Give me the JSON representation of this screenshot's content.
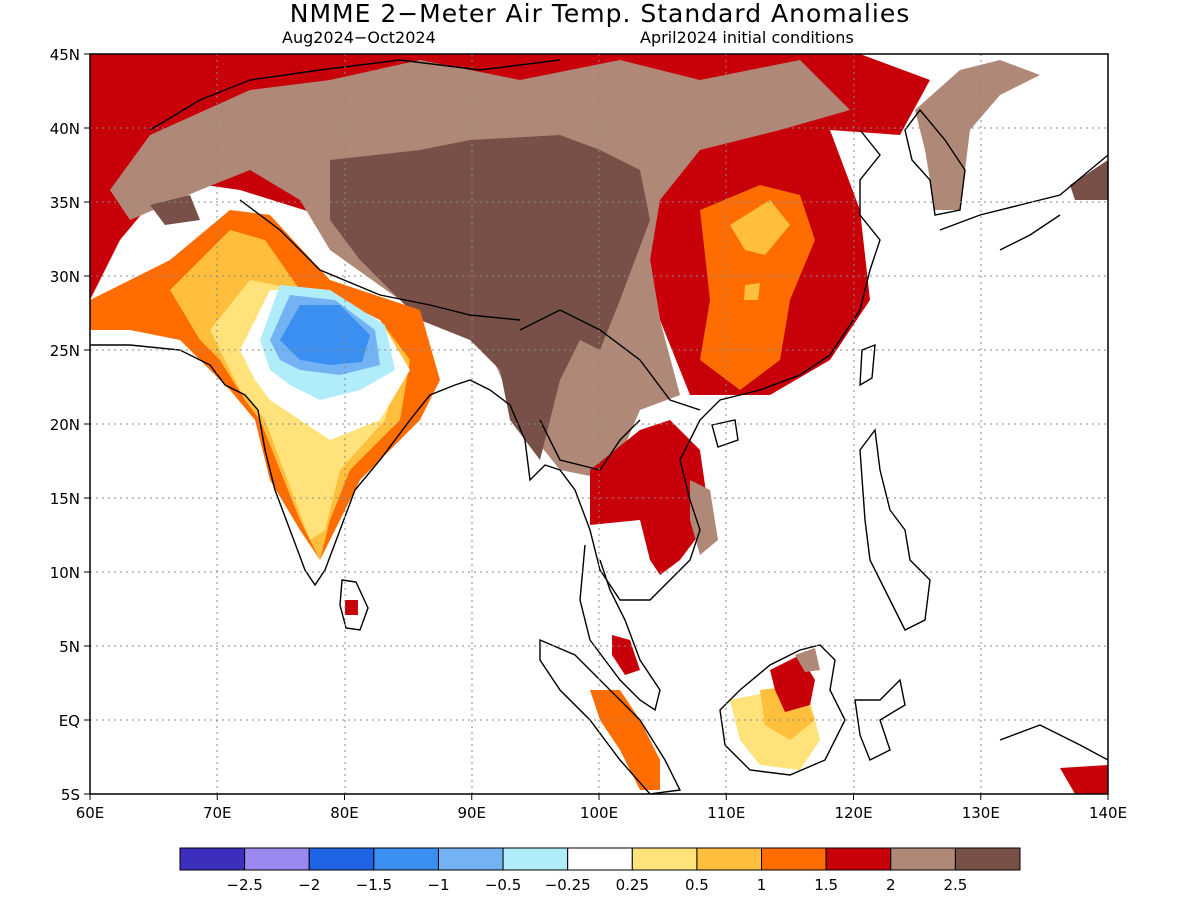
{
  "title": "NMME 2−Meter Air Temp. Standard Anomalies",
  "subtitle_left": "Aug2024−Oct2024",
  "subtitle_right": "April2024 initial conditions",
  "map": {
    "lon_range": [
      60,
      140
    ],
    "lat_range": [
      -5,
      45
    ],
    "lon_ticks": [
      "60E",
      "70E",
      "80E",
      "90E",
      "100E",
      "110E",
      "120E",
      "130E",
      "140E"
    ],
    "lat_ticks": [
      "45N",
      "40N",
      "35N",
      "30N",
      "25N",
      "20N",
      "15N",
      "10N",
      "5N",
      "EQ",
      "5S"
    ],
    "grid": "dotted"
  },
  "colorbar": {
    "colors": [
      "#3c2fbe",
      "#9b87f0",
      "#1f64e4",
      "#3b8ff0",
      "#73b3f3",
      "#b0ecfa",
      "#ffffff",
      "#ffe27a",
      "#ffbe3c",
      "#ff6c00",
      "#c8000a",
      "#b08878",
      "#785048"
    ],
    "labels": [
      "−2.5",
      "−2",
      "−1.5",
      "−1",
      "−0.5",
      "−0.25",
      "0.25",
      "0.5",
      "1",
      "1.5",
      "2",
      "2.5"
    ]
  },
  "colors": {
    "land_outline": "#000000",
    "ocean": "#ffffff",
    "frame": "#000000"
  }
}
